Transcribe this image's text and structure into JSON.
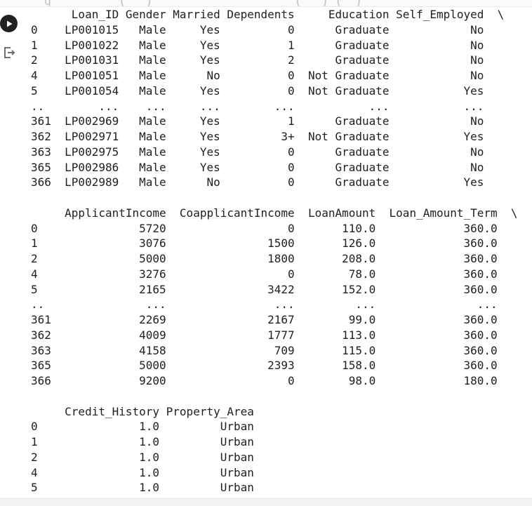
{
  "cell": {
    "run_button_icon": "play-icon",
    "output_icon": "output-redirect-icon",
    "clipped_input": "  g     _    (   )                _    (   ) (  )"
  },
  "output": {
    "lines": [
      "      Loan_ID Gender Married Dependents     Education Self_Employed  \\",
      "0    LP001015   Male     Yes          0      Graduate            No   ",
      "1    LP001022   Male     Yes          1      Graduate            No   ",
      "2    LP001031   Male     Yes          2      Graduate            No   ",
      "4    LP001051   Male      No          0  Not Graduate            No   ",
      "5    LP001054   Male     Yes          0  Not Graduate           Yes   ",
      "..        ...    ...     ...        ...           ...           ...   ",
      "361  LP002969   Male     Yes          1      Graduate            No   ",
      "362  LP002971   Male     Yes         3+  Not Graduate           Yes   ",
      "363  LP002975   Male     Yes          0      Graduate            No   ",
      "365  LP002986   Male     Yes          0      Graduate            No   ",
      "366  LP002989   Male      No          0      Graduate           Yes   ",
      "",
      "     ApplicantIncome  CoapplicantIncome  LoanAmount  Loan_Amount_Term  \\",
      "0               5720                  0       110.0             360.0   ",
      "1               3076               1500       126.0             360.0   ",
      "2               5000               1800       208.0             360.0   ",
      "4               3276                  0        78.0             360.0   ",
      "5               2165               3422       152.0             360.0   ",
      "..               ...                ...         ...               ...   ",
      "361             2269               2167        99.0             360.0   ",
      "362             4009               1777       113.0             360.0   ",
      "363             4158                709       115.0             360.0   ",
      "365             5000               2393       158.0             360.0   ",
      "366             9200                  0        98.0             180.0   ",
      "",
      "     Credit_History Property_Area",
      "0               1.0         Urban",
      "1               1.0         Urban",
      "2               1.0         Urban",
      "4               1.0         Urban",
      "5               1.0         Urban"
    ]
  }
}
